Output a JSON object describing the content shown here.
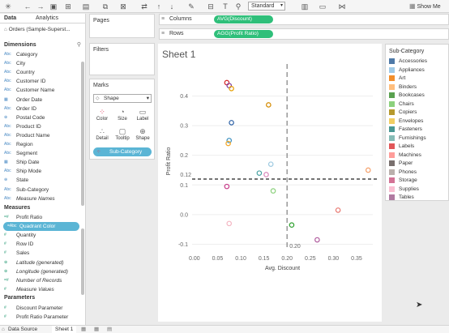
{
  "toolbar": {
    "std_select": "Standard",
    "show_me": "Show Me"
  },
  "left_pane": {
    "tab_data": "Data",
    "tab_analytics": "Analytics",
    "datasource": "Orders (Sample-Superst...",
    "dimensions_header": "Dimensions",
    "dimensions": [
      {
        "icon": "Abc",
        "label": "Category"
      },
      {
        "icon": "Abc",
        "label": "City"
      },
      {
        "icon": "Abc",
        "label": "Country"
      },
      {
        "icon": "Abc",
        "label": "Customer ID"
      },
      {
        "icon": "Abc",
        "label": "Customer Name"
      },
      {
        "icon": "▦",
        "label": "Order Date"
      },
      {
        "icon": "Abc",
        "label": "Order ID"
      },
      {
        "icon": "⊕",
        "label": "Postal Code"
      },
      {
        "icon": "Abc",
        "label": "Product ID"
      },
      {
        "icon": "Abc",
        "label": "Product Name"
      },
      {
        "icon": "Abc",
        "label": "Region"
      },
      {
        "icon": "Abc",
        "label": "Segment"
      },
      {
        "icon": "▦",
        "label": "Ship Date"
      },
      {
        "icon": "Abc",
        "label": "Ship Mode"
      },
      {
        "icon": "⊕",
        "label": "State"
      },
      {
        "icon": "Abc",
        "label": "Sub-Category"
      },
      {
        "icon": "Abc",
        "label": "Measure Names"
      }
    ],
    "measures_header": "Measures",
    "measures": [
      {
        "icon": "=#",
        "label": "Profit Ratio"
      },
      {
        "icon": "=Abc",
        "label": "Quadrant Color"
      },
      {
        "icon": "#",
        "label": "Quantity"
      },
      {
        "icon": "#",
        "label": "Row ID"
      },
      {
        "icon": "#",
        "label": "Sales"
      },
      {
        "icon": "⊕",
        "label": "Latitude (generated)"
      },
      {
        "icon": "⊕",
        "label": "Longitude (generated)"
      },
      {
        "icon": "=#",
        "label": "Number of Records"
      },
      {
        "icon": "#",
        "label": "Measure Values"
      }
    ],
    "parameters_header": "Parameters",
    "parameters": [
      {
        "icon": "#",
        "label": "Discount Parameter"
      },
      {
        "icon": "#",
        "label": "Profit Ratio Parameter"
      }
    ]
  },
  "cards": {
    "pages": "Pages",
    "filters": "Filters",
    "marks": "Marks",
    "mark_type": "Shape",
    "mark_buttons": [
      "Color",
      "Size",
      "Label",
      "Detail",
      "Tooltip",
      "Shape"
    ],
    "subcat_pill": "Sub-Category"
  },
  "shelves": {
    "columns_label": "Columns",
    "columns_pill": "AVG(Discount)",
    "rows_label": "Rows",
    "rows_pill": "AGG(Profit Ratio)"
  },
  "sheet": {
    "title": "Sheet 1"
  },
  "chart_data": {
    "type": "scatter",
    "xlabel": "Avg. Discount",
    "ylabel": "Profit Ratio",
    "xlim": [
      -0.005,
      0.385
    ],
    "ylim": [
      -0.115,
      0.475
    ],
    "x_ticks": [
      "0.00",
      "0.05",
      "0.10",
      "0.15",
      "0.20",
      "0.25",
      "0.30",
      "0.35"
    ],
    "y_ticks": [
      "-0.1",
      "0.0",
      "0.1",
      "0.2",
      "0.3",
      "0.4"
    ],
    "ref_x": 0.2,
    "ref_x_label": "0.20",
    "ref_y": 0.12,
    "ref_y_label": "0.12",
    "points": [
      {
        "name": "Labels",
        "x": 0.07,
        "y": 0.445,
        "color": "#d62728"
      },
      {
        "name": "Paper",
        "x": 0.075,
        "y": 0.435,
        "color": "#7f3f9f"
      },
      {
        "name": "Envelopes",
        "x": 0.08,
        "y": 0.425,
        "color": "#e69f00"
      },
      {
        "name": "Copiers",
        "x": 0.16,
        "y": 0.37,
        "color": "#d58b00"
      },
      {
        "name": "Accessories",
        "x": 0.08,
        "y": 0.31,
        "color": "#2a5fa5"
      },
      {
        "name": "Fasteners",
        "x": 0.075,
        "y": 0.25,
        "color": "#3a8fbf"
      },
      {
        "name": "Art",
        "x": 0.073,
        "y": 0.24,
        "color": "#f5a623"
      },
      {
        "name": "Appliances",
        "x": 0.165,
        "y": 0.17,
        "color": "#9ecae1"
      },
      {
        "name": "Furnishings",
        "x": 0.14,
        "y": 0.14,
        "color": "#4aa3a3"
      },
      {
        "name": "Storage",
        "x": 0.155,
        "y": 0.135,
        "color": "#d987b9"
      },
      {
        "name": "Chairs",
        "x": 0.17,
        "y": 0.08,
        "color": "#8cd17d"
      },
      {
        "name": "Binders",
        "x": 0.375,
        "y": 0.15,
        "color": "#f5a06a"
      },
      {
        "name": "Phones",
        "x": 0.07,
        "y": 0.095,
        "color": "#c83e8b"
      },
      {
        "name": "Supplies",
        "x": 0.075,
        "y": -0.03,
        "color": "#f4b6c2"
      },
      {
        "name": "Machines",
        "x": 0.31,
        "y": 0.015,
        "color": "#e8776f"
      },
      {
        "name": "Bookcases",
        "x": 0.21,
        "y": -0.035,
        "color": "#2ca02c"
      },
      {
        "name": "Tables",
        "x": 0.265,
        "y": -0.085,
        "color": "#b05c9e"
      }
    ]
  },
  "legend": {
    "title": "Sub-Category",
    "items": [
      {
        "label": "Accessories",
        "color": "#4e79a7"
      },
      {
        "label": "Appliances",
        "color": "#a0cbe8"
      },
      {
        "label": "Art",
        "color": "#f28e2b"
      },
      {
        "label": "Binders",
        "color": "#ffbe7d"
      },
      {
        "label": "Bookcases",
        "color": "#59a14f"
      },
      {
        "label": "Chairs",
        "color": "#8cd17d"
      },
      {
        "label": "Copiers",
        "color": "#b6992d"
      },
      {
        "label": "Envelopes",
        "color": "#f1ce63"
      },
      {
        "label": "Fasteners",
        "color": "#499894"
      },
      {
        "label": "Furnishings",
        "color": "#86bcb6"
      },
      {
        "label": "Labels",
        "color": "#e15759"
      },
      {
        "label": "Machines",
        "color": "#ff9d9a"
      },
      {
        "label": "Paper",
        "color": "#79706e"
      },
      {
        "label": "Phones",
        "color": "#bab0ac"
      },
      {
        "label": "Storage",
        "color": "#d37295"
      },
      {
        "label": "Supplies",
        "color": "#fabfd2"
      },
      {
        "label": "Tables",
        "color": "#b07aa1"
      }
    ]
  },
  "bottom_tabs": {
    "datasource": "Data Source",
    "sheet1": "Sheet 1"
  }
}
